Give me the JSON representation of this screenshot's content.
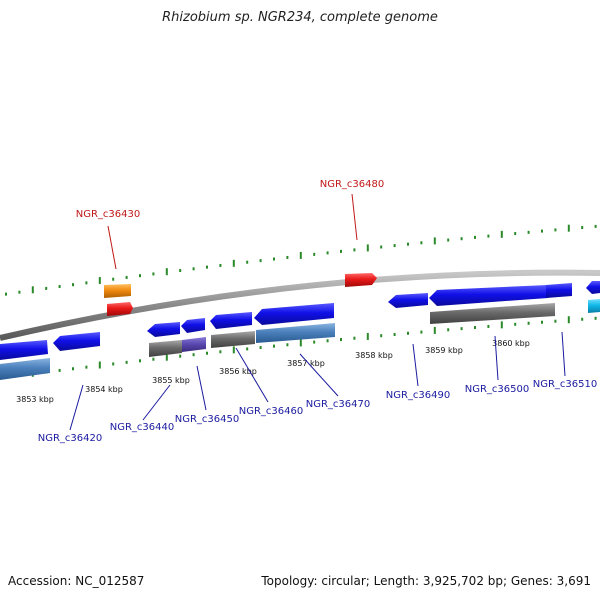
{
  "header": {
    "title": "Rhizobium sp. NGR234, complete genome"
  },
  "footer": {
    "accession": "Accession: NC_012587",
    "stats": "Topology: circular; Length: 3,925,702 bp; Genes: 3,691"
  },
  "colors": {
    "backbone": "#8a8a8a",
    "cds_forward": "#1818e0",
    "cds_reverse": "#1010e8",
    "gene_grey": "#6e6e6e",
    "gene_steel": "#4f86c0",
    "rna_red": "#e81818",
    "rna_orange": "#f08a10",
    "cyan": "#10b8e8",
    "purple": "#5b4ab0",
    "tick": "#2a8a2a",
    "label_blue": "#1a1aa0",
    "label_red": "#c01818"
  },
  "scale_labels": [
    "3853 kbp",
    "3854 kbp",
    "3855 kbp",
    "3856 kbp",
    "3857 kbp",
    "3858 kbp",
    "3859 kbp",
    "3860 kbp"
  ],
  "gene_labels_top": [
    "NGR_c36430",
    "NGR_c36480"
  ],
  "gene_labels_bottom": [
    "NGR_c36420",
    "NGR_c36440",
    "NGR_c36450",
    "NGR_c36460",
    "NGR_c36470",
    "NGR_c36490",
    "NGR_c36500",
    "NGR_c36510"
  ]
}
